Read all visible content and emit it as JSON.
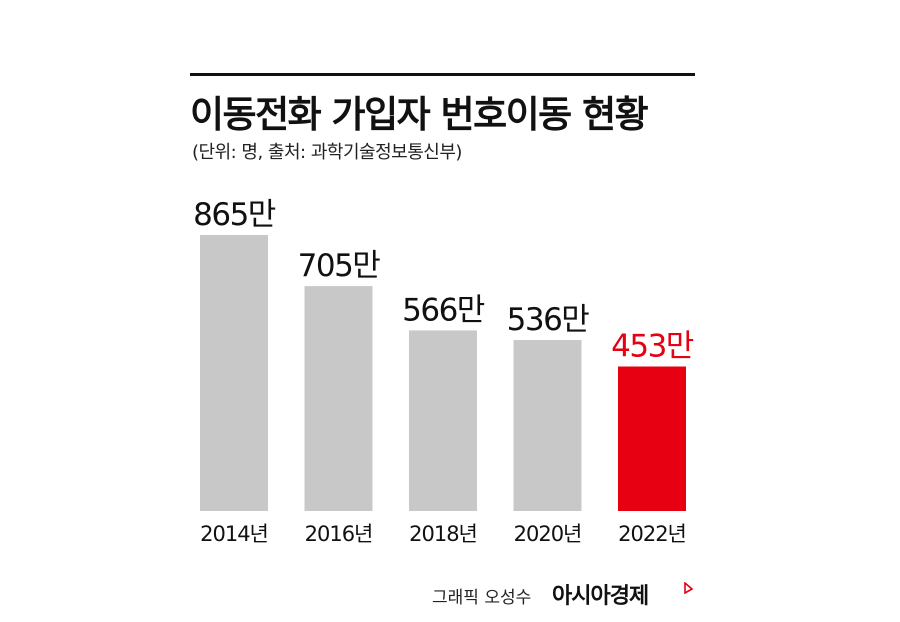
{
  "chart_data": {
    "type": "bar",
    "title": "이동전화 가입자 번호이동 현황",
    "subtitle": "(단위: 명, 출처: 과학기술정보통신부)",
    "categories": [
      "2014년",
      "2016년",
      "2018년",
      "2020년",
      "2022년"
    ],
    "values": [
      865,
      705,
      566,
      536,
      453
    ],
    "value_labels": [
      "865만",
      "705만",
      "566만",
      "536만",
      "453만"
    ],
    "unit": "만",
    "xlabel": "",
    "ylabel": "",
    "ylim": [
      0,
      865
    ],
    "grid": false,
    "legend": "none",
    "colors": {
      "default_bar": "#c8c8c8",
      "highlight_bar": "#e60012",
      "default_label": "#111111",
      "highlight_label": "#e60012"
    },
    "highlight_index": 4
  },
  "footer": {
    "credit": "그래픽 오성수",
    "brand": "아시아경제"
  }
}
